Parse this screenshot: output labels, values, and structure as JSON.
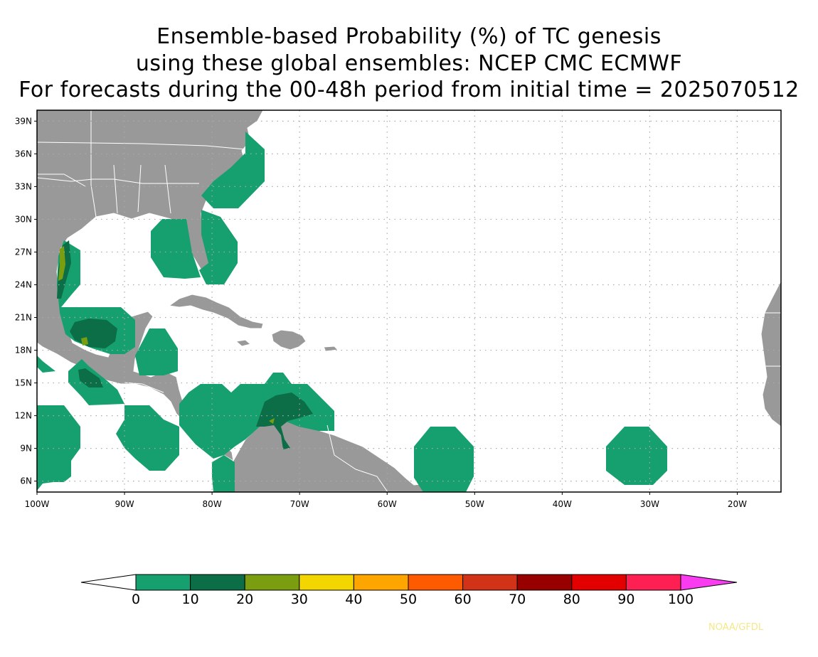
{
  "title": {
    "line1": "Ensemble-based Probability (%) of TC genesis",
    "line2": "using these global ensembles:   NCEP CMC ECMWF",
    "line3": "For forecasts during the 00-48h period from initial time = 2025070512"
  },
  "map": {
    "lon_range": [
      -100,
      -15
    ],
    "lat_range": [
      5,
      40
    ],
    "lat_ticks": [
      {
        "lat": 39,
        "label": "39N"
      },
      {
        "lat": 36,
        "label": "36N"
      },
      {
        "lat": 33,
        "label": "33N"
      },
      {
        "lat": 30,
        "label": "30N"
      },
      {
        "lat": 27,
        "label": "27N"
      },
      {
        "lat": 24,
        "label": "24N"
      },
      {
        "lat": 21,
        "label": "21N"
      },
      {
        "lat": 18,
        "label": "18N"
      },
      {
        "lat": 15,
        "label": "15N"
      },
      {
        "lat": 12,
        "label": "12N"
      },
      {
        "lat": 9,
        "label": "9N"
      },
      {
        "lat": 6,
        "label": "6N"
      }
    ],
    "lon_ticks": [
      {
        "lon": -100,
        "label": "100W"
      },
      {
        "lon": -90,
        "label": "90W"
      },
      {
        "lon": -80,
        "label": "80W"
      },
      {
        "lon": -70,
        "label": "70W"
      },
      {
        "lon": -60,
        "label": "60W"
      },
      {
        "lon": -50,
        "label": "50W"
      },
      {
        "lon": -40,
        "label": "40W"
      },
      {
        "lon": -30,
        "label": "30W"
      },
      {
        "lon": -20,
        "label": "20W"
      }
    ],
    "colors": {
      "land": "#999999",
      "background": "#ffffff",
      "grid": "#aaaaaa",
      "border": "#ffffff"
    }
  },
  "colorbar": {
    "labels": [
      "0",
      "10",
      "20",
      "30",
      "40",
      "50",
      "60",
      "70",
      "80",
      "90",
      "100"
    ],
    "colors": [
      "#16a06f",
      "#0c6e46",
      "#7a9e10",
      "#f3d600",
      "#fea500",
      "#fe5b00",
      "#d13218",
      "#980000",
      "#e20000",
      "#fe2052"
    ],
    "low_color": "#ffffff",
    "high_color": "#f93cf0"
  },
  "credit": "NOAA/GFDL"
}
